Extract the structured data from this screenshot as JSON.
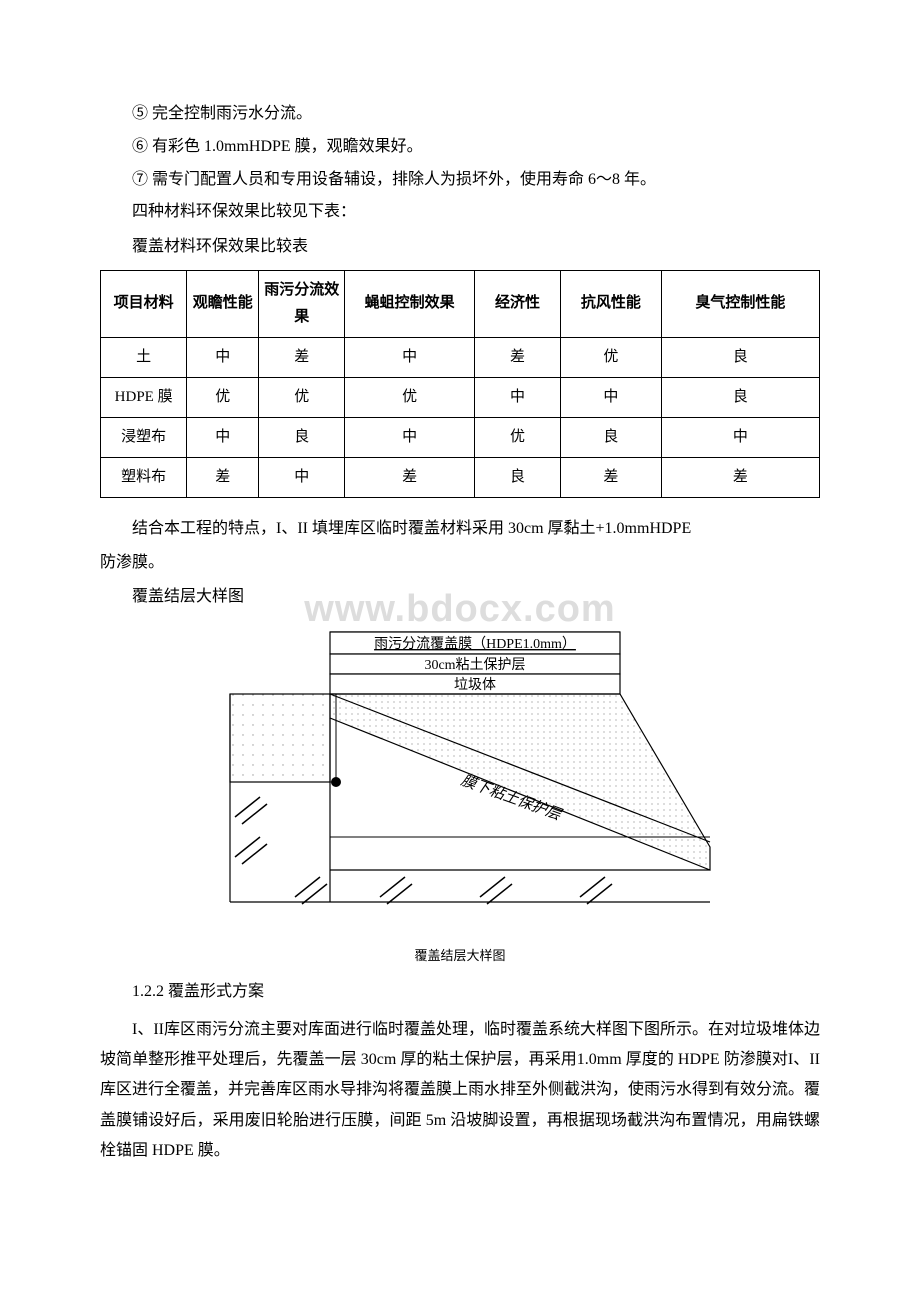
{
  "bullets": {
    "b5": "⑤ 完全控制雨污水分流。",
    "b6": "⑥ 有彩色 1.0mmHDPE 膜，观瞻效果好。",
    "b7": "⑦ 需专门配置人员和专用设备辅设，排除人为损坏外，使用寿命 6～8 年。"
  },
  "intro": {
    "line1": "四种材料环保效果比较见下表：",
    "line2": "覆盖材料环保效果比较表"
  },
  "table": {
    "headers": [
      "项目材料",
      "观瞻性能",
      "雨污分流效果",
      "蝇蛆控制效果",
      "经济性",
      "抗风性能",
      "臭气控制性能"
    ],
    "rows": [
      [
        "土",
        "中",
        "差",
        "中",
        "差",
        "优",
        "良"
      ],
      [
        "HDPE 膜",
        "优",
        "优",
        "优",
        "中",
        "中",
        "良"
      ],
      [
        "浸塑布",
        "中",
        "良",
        "中",
        "优",
        "良",
        "中"
      ],
      [
        "塑料布",
        "差",
        "中",
        "差",
        "良",
        "差",
        "差"
      ]
    ],
    "col_widths": [
      "12%",
      "10%",
      "12%",
      "18%",
      "12%",
      "14%",
      "22%"
    ]
  },
  "after_table": {
    "p1": "结合本工程的特点，I、II 填埋库区临时覆盖材料采用 30cm 厚黏土+1.0mmHDPE",
    "p1b": "防渗膜。",
    "p2": "覆盖结层大样图"
  },
  "watermark": "www.bdocx.com",
  "diagram": {
    "label_top": "雨污分流覆盖膜（HDPE1.0mm）",
    "label_mid": "30cm粘土保护层",
    "label_body": "垃圾体",
    "label_slope": "膜下粘土保护层",
    "caption": "覆盖结层大样图",
    "colors": {
      "line": "#000000",
      "fill_dotted": "#f5f5f5",
      "bg": "#ffffff"
    }
  },
  "section": {
    "num": "1.2.2 覆盖形式方案",
    "body": "I、II库区雨污分流主要对库面进行临时覆盖处理，临时覆盖系统大样图下图所示。在对垃圾堆体边坡简单整形推平处理后，先覆盖一层 30cm 厚的粘土保护层，再采用1.0mm 厚度的 HDPE 防渗膜对I、II库区进行全覆盖，并完善库区雨水导排沟将覆盖膜上雨水排至外侧截洪沟，使雨污水得到有效分流。覆盖膜铺设好后，采用废旧轮胎进行压膜，间距 5m 沿坡脚设置，再根据现场截洪沟布置情况，用扁铁螺栓锚固 HDPE 膜。"
  }
}
